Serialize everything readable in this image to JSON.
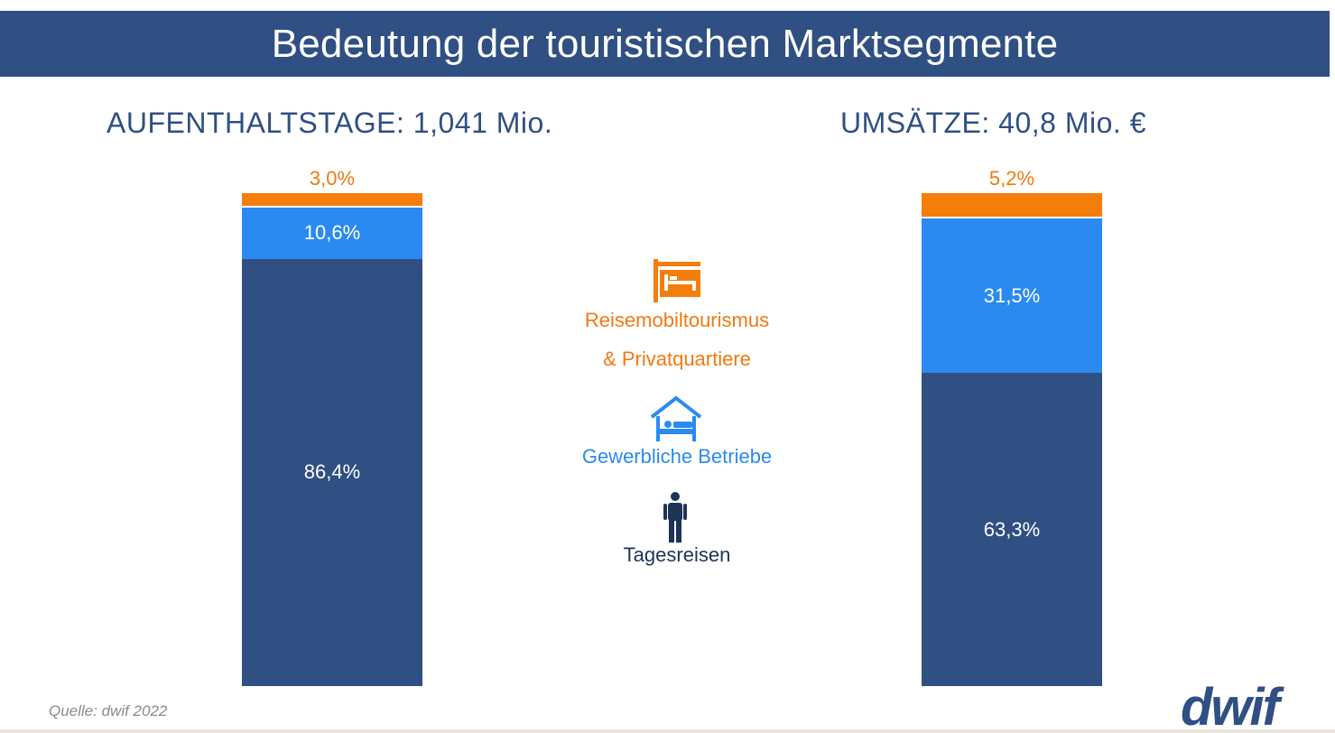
{
  "title": "Bedeutung der touristischen Marktsegmente",
  "source": "Quelle: dwif 2022",
  "logo_text": "dwif",
  "colors": {
    "header_bg": "#304f82",
    "tagesreisen": "#304f82",
    "gewerbliche": "#2a8af0",
    "reisemobil": "#f57d0a"
  },
  "legend": {
    "reisemobil_line1": "Reisemobiltourismus",
    "reisemobil_line2": "& Privatquartiere",
    "reisemobil_icon": "signboard-bed-icon",
    "gewerbliche": "Gewerbliche Betriebe",
    "gewerbliche_icon": "house-bed-icon",
    "tagesreisen": "Tagesreisen",
    "tagesreisen_icon": "person-icon"
  },
  "chart_data": [
    {
      "type": "bar",
      "stacked": true,
      "title": "AUFENTHALTSTAGE:  1,041 Mio.",
      "categories": [
        "AUFENTHALTSTAGE"
      ],
      "series": [
        {
          "name": "Tagesreisen",
          "values": [
            86.4
          ],
          "label": "86,4%"
        },
        {
          "name": "Gewerbliche Betriebe",
          "values": [
            10.6
          ],
          "label": "10,6%"
        },
        {
          "name": "Reisemobiltourismus & Privatquartiere",
          "values": [
            3.0
          ],
          "label": "3,0%"
        }
      ],
      "unit": "%"
    },
    {
      "type": "bar",
      "stacked": true,
      "title": "UMSÄTZE:  40,8 Mio. €",
      "categories": [
        "UMSÄTZE"
      ],
      "series": [
        {
          "name": "Tagesreisen",
          "values": [
            63.3
          ],
          "label": "63,3%"
        },
        {
          "name": "Gewerbliche Betriebe",
          "values": [
            31.5
          ],
          "label": "31,5%"
        },
        {
          "name": "Reisemobiltourismus & Privatquartiere",
          "values": [
            5.2
          ],
          "label": "5,2%"
        }
      ],
      "unit": "%"
    }
  ]
}
